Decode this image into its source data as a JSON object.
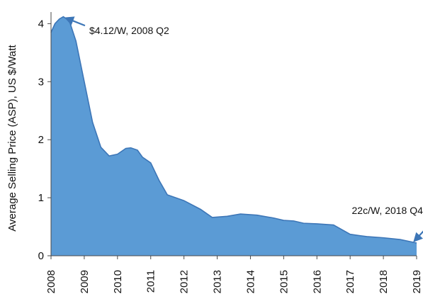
{
  "chart_data": {
    "type": "area",
    "title": "",
    "xlabel": "",
    "ylabel": "Average Selling Price (ASP),  US $/Watt",
    "x_ticks": [
      "2008",
      "2009",
      "2010",
      "2011",
      "2012",
      "2013",
      "2014",
      "2015",
      "2016",
      "2017",
      "2018",
      "2019"
    ],
    "y_ticks": [
      "0",
      "1",
      "2",
      "3",
      "4"
    ],
    "xlim": [
      2008,
      2019
    ],
    "ylim": [
      0,
      4.2
    ],
    "grid": false,
    "series": [
      {
        "points": [
          [
            2008.0,
            3.85
          ],
          [
            2008.12,
            4.0
          ],
          [
            2008.25,
            4.08
          ],
          [
            2008.37,
            4.12
          ],
          [
            2008.55,
            4.05
          ],
          [
            2008.75,
            3.7
          ],
          [
            2009.0,
            3.0
          ],
          [
            2009.25,
            2.3
          ],
          [
            2009.5,
            1.87
          ],
          [
            2009.75,
            1.72
          ],
          [
            2010.0,
            1.75
          ],
          [
            2010.25,
            1.85
          ],
          [
            2010.4,
            1.86
          ],
          [
            2010.6,
            1.82
          ],
          [
            2010.75,
            1.7
          ],
          [
            2011.0,
            1.6
          ],
          [
            2011.25,
            1.3
          ],
          [
            2011.5,
            1.05
          ],
          [
            2012.0,
            0.95
          ],
          [
            2012.5,
            0.8
          ],
          [
            2012.85,
            0.66
          ],
          [
            2013.3,
            0.68
          ],
          [
            2013.7,
            0.72
          ],
          [
            2014.2,
            0.7
          ],
          [
            2014.7,
            0.65
          ],
          [
            2015.0,
            0.61
          ],
          [
            2015.3,
            0.6
          ],
          [
            2015.6,
            0.56
          ],
          [
            2016.0,
            0.55
          ],
          [
            2016.5,
            0.53
          ],
          [
            2017.0,
            0.37
          ],
          [
            2017.5,
            0.33
          ],
          [
            2018.0,
            0.31
          ],
          [
            2018.5,
            0.28
          ],
          [
            2018.75,
            0.25
          ],
          [
            2019.0,
            0.22
          ]
        ]
      }
    ],
    "annotations": [
      {
        "text": "$4.12/W, 2008 Q2",
        "target": [
          2008.37,
          4.12
        ],
        "text_pos": [
          2009.15,
          3.82
        ]
      },
      {
        "text": "22c/W, 2018 Q4",
        "target": [
          2019.0,
          0.22
        ],
        "text_pos": [
          2017.05,
          0.72
        ]
      }
    ],
    "colors": {
      "fill": "#5b9bd5",
      "line": "#3d76b7",
      "arrow": "#3d76b7",
      "axis": "#4a4a4a"
    }
  }
}
